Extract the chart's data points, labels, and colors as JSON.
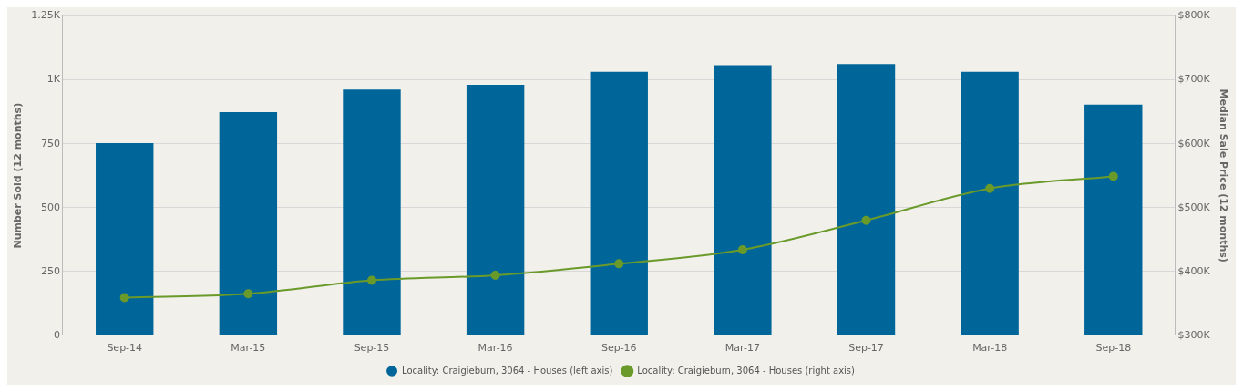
{
  "chart_data": {
    "type": "bar",
    "xlabel": null,
    "ylabel": "Number Sold (12 months)",
    "y2label": "Median Sale Price (12 months)",
    "categories": [
      "Sep-14",
      "Mar-15",
      "Sep-15",
      "Mar-16",
      "Sep-16",
      "Mar-17",
      "Sep-17",
      "Mar-18",
      "Sep-18"
    ],
    "series": [
      {
        "name": "Locality: Craigieburn, 3064 - Houses (left axis)",
        "color": "#006699",
        "values": [
          752,
          874,
          962,
          981,
          1032,
          1058,
          1062,
          1032,
          903
        ]
      },
      {
        "name": "Locality: Craigieburn, 3064 - Houses (right axis)",
        "type": "line",
        "axis": "y2",
        "color": "#6a9a2a",
        "marker": "circle",
        "values": [
          359,
          365,
          386,
          394,
          412,
          434,
          480,
          530,
          549
        ]
      }
    ],
    "ylim": [
      0,
      1250
    ],
    "yticks": [
      0,
      250,
      500,
      750,
      {
        "value": 1000,
        "label": "1K"
      },
      {
        "value": 1250,
        "label": "1.25K"
      }
    ],
    "y2lim": [
      300,
      800
    ],
    "y2ticks": [
      {
        "value": 300,
        "label": "$300K"
      },
      {
        "value": 400,
        "label": "$400K"
      },
      {
        "value": 500,
        "label": "$500K"
      },
      {
        "value": 600,
        "label": "$600K"
      },
      {
        "value": 700,
        "label": "$700K"
      },
      {
        "value": 800,
        "label": "$800K"
      }
    ],
    "grid": "y",
    "legend": "bottom"
  }
}
